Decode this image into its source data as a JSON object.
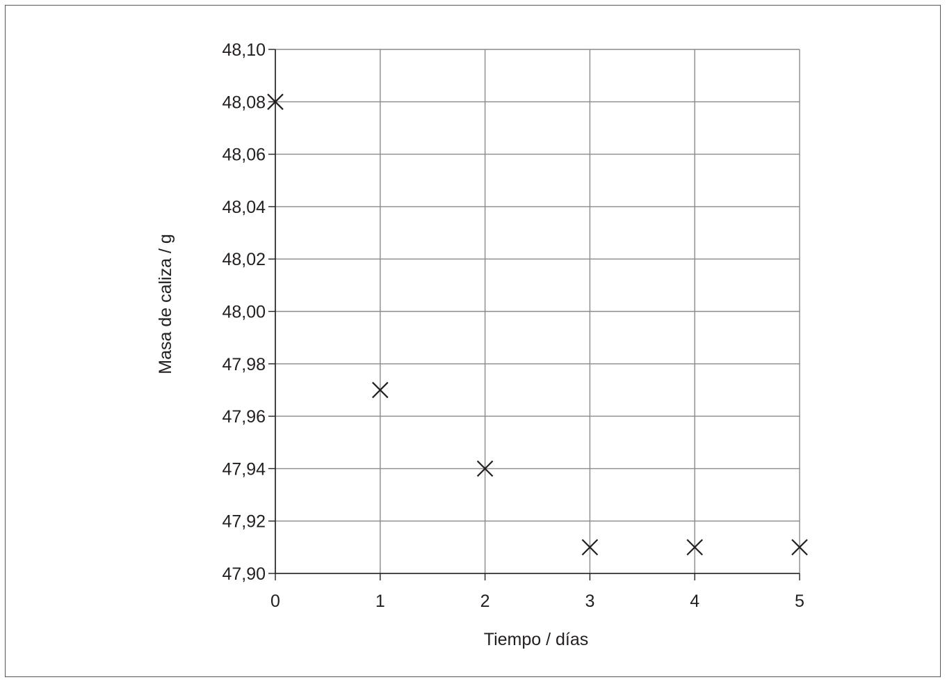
{
  "chart_data": {
    "type": "scatter",
    "xlabel": "Tiempo / días",
    "ylabel": "Masa de caliza / g",
    "xlim": [
      0,
      5
    ],
    "ylim": [
      47.9,
      48.1
    ],
    "x_ticks": [
      "0",
      "1",
      "2",
      "3",
      "4",
      "5"
    ],
    "y_ticks": [
      "47,90",
      "47,92",
      "47,94",
      "47,96",
      "47,98",
      "48,00",
      "48,02",
      "48,04",
      "48,06",
      "48,08",
      "48,10"
    ],
    "grid": true,
    "marker": "x",
    "series": [
      {
        "points": [
          {
            "x": 0,
            "y": 48.08
          },
          {
            "x": 1,
            "y": 47.97
          },
          {
            "x": 2,
            "y": 47.94
          },
          {
            "x": 3,
            "y": 47.91
          },
          {
            "x": 4,
            "y": 47.91
          },
          {
            "x": 5,
            "y": 47.91
          }
        ]
      }
    ]
  }
}
